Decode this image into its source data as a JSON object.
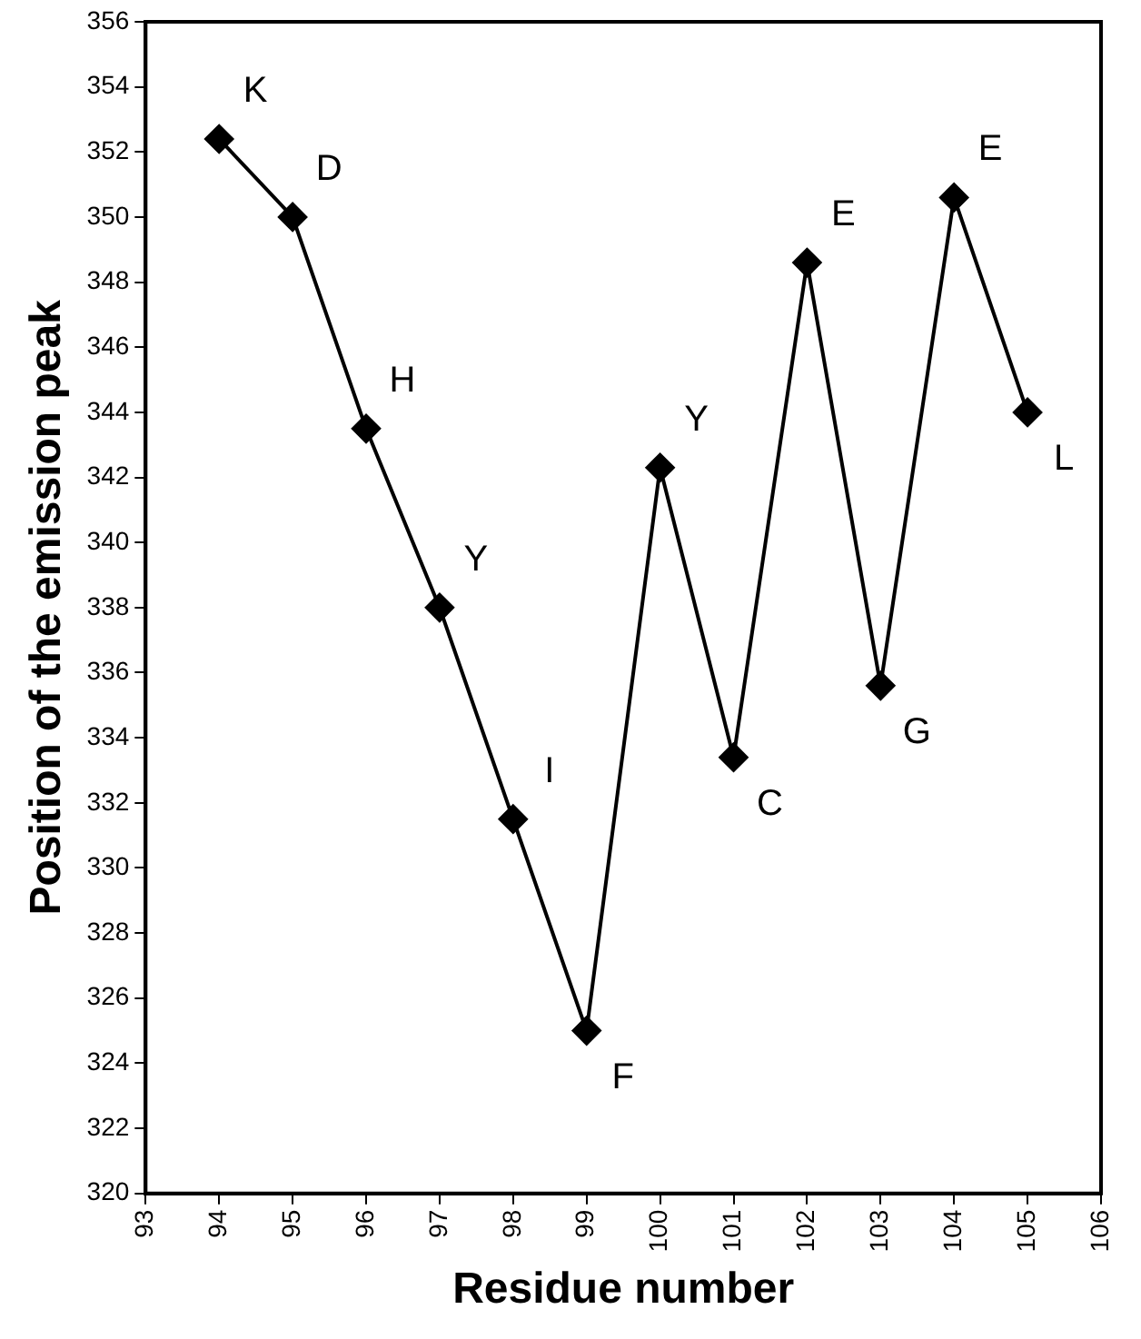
{
  "chart_data": {
    "type": "line",
    "xlabel": "Residue number",
    "ylabel": "Position of the emission peak",
    "x": [
      94,
      95,
      96,
      97,
      98,
      99,
      100,
      101,
      102,
      103,
      104,
      105
    ],
    "series": [
      {
        "color": "#000000",
        "values": [
          352.4,
          350,
          343.5,
          338,
          331.5,
          325,
          342.3,
          333.4,
          348.6,
          335.6,
          350.6,
          344
        ],
        "value_labels": [
          "K",
          "D",
          "H",
          "Y",
          "I",
          "F",
          "Y",
          "C",
          "E",
          "G",
          "E",
          "L"
        ]
      }
    ],
    "xlim": [
      93,
      106
    ],
    "xticks": [
      93,
      94,
      95,
      96,
      97,
      98,
      99,
      100,
      101,
      102,
      103,
      104,
      105,
      106
    ],
    "ylim": [
      320,
      356
    ],
    "yticks": [
      320,
      322,
      324,
      326,
      328,
      330,
      332,
      334,
      336,
      338,
      340,
      342,
      344,
      346,
      348,
      350,
      352,
      354,
      356
    ],
    "grid": false,
    "legend": false,
    "marker": "diamond",
    "line_style": "solid"
  }
}
